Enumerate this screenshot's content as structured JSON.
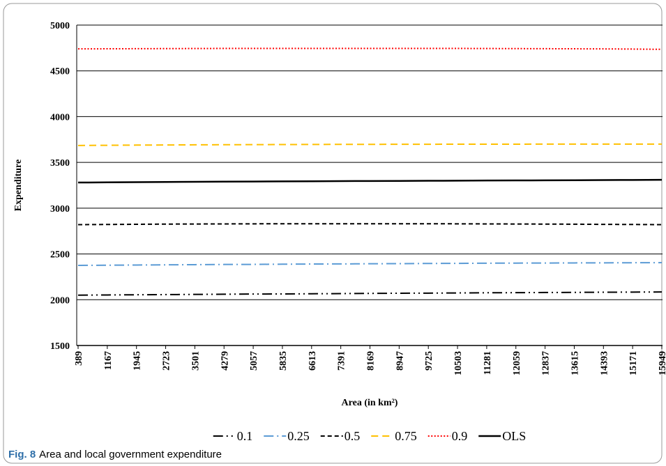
{
  "chart_data": {
    "type": "line",
    "y_label": "Expenditure",
    "x_label": "Area (in km²)",
    "caption_label": "Fig. 8",
    "caption": "Area and local government expenditure",
    "categories": [
      "389",
      "1167",
      "1945",
      "2723",
      "3501",
      "4279",
      "5057",
      "5835",
      "6613",
      "7391",
      "8169",
      "8947",
      "9725",
      "10503",
      "11281",
      "12059",
      "12837",
      "13615",
      "14393",
      "15171",
      "15949"
    ],
    "ylim": [
      1500,
      5000
    ],
    "yticks": [
      1500,
      2000,
      2500,
      3000,
      3500,
      4000,
      4500,
      5000
    ],
    "grid": true,
    "legend": "bottom",
    "series": [
      {
        "name": "0.1",
        "color": "#000000",
        "line_style": "dash-dot-dot",
        "values": [
          2050,
          2052,
          2054,
          2056,
          2058,
          2060,
          2062,
          2063,
          2065,
          2067,
          2069,
          2071,
          2072,
          2074,
          2076,
          2077,
          2079,
          2080,
          2082,
          2083,
          2085
        ]
      },
      {
        "name": "0.25",
        "color": "#5b9bd5",
        "line_style": "dash-dot",
        "values": [
          2375,
          2377,
          2379,
          2381,
          2383,
          2385,
          2386,
          2388,
          2390,
          2391,
          2393,
          2394,
          2396,
          2397,
          2399,
          2400,
          2401,
          2402,
          2403,
          2404,
          2405
        ]
      },
      {
        "name": "0.5",
        "color": "#000000",
        "line_style": "short-dash",
        "values": [
          2820,
          2822,
          2824,
          2826,
          2827,
          2828,
          2829,
          2830,
          2830,
          2830,
          2830,
          2830,
          2830,
          2829,
          2828,
          2827,
          2826,
          2825,
          2823,
          2822,
          2820
        ]
      },
      {
        "name": "0.75",
        "color": "#ffc000",
        "line_style": "dash",
        "values": [
          3685,
          3687,
          3689,
          3690,
          3692,
          3693,
          3694,
          3695,
          3696,
          3697,
          3697,
          3698,
          3698,
          3699,
          3699,
          3699,
          3700,
          3700,
          3700,
          3700,
          3700
        ]
      },
      {
        "name": "0.9",
        "color": "#ff0000",
        "line_style": "dot",
        "values": [
          4740,
          4741,
          4742,
          4743,
          4744,
          4745,
          4745,
          4745,
          4745,
          4745,
          4745,
          4745,
          4745,
          4745,
          4744,
          4743,
          4742,
          4741,
          4740,
          4738,
          4735
        ]
      },
      {
        "name": "OLS",
        "color": "#000000",
        "line_style": "solid",
        "values": [
          3280,
          3282,
          3284,
          3286,
          3288,
          3290,
          3291,
          3293,
          3294,
          3296,
          3297,
          3298,
          3299,
          3300,
          3302,
          3303,
          3304,
          3305,
          3307,
          3308,
          3310
        ]
      }
    ]
  }
}
